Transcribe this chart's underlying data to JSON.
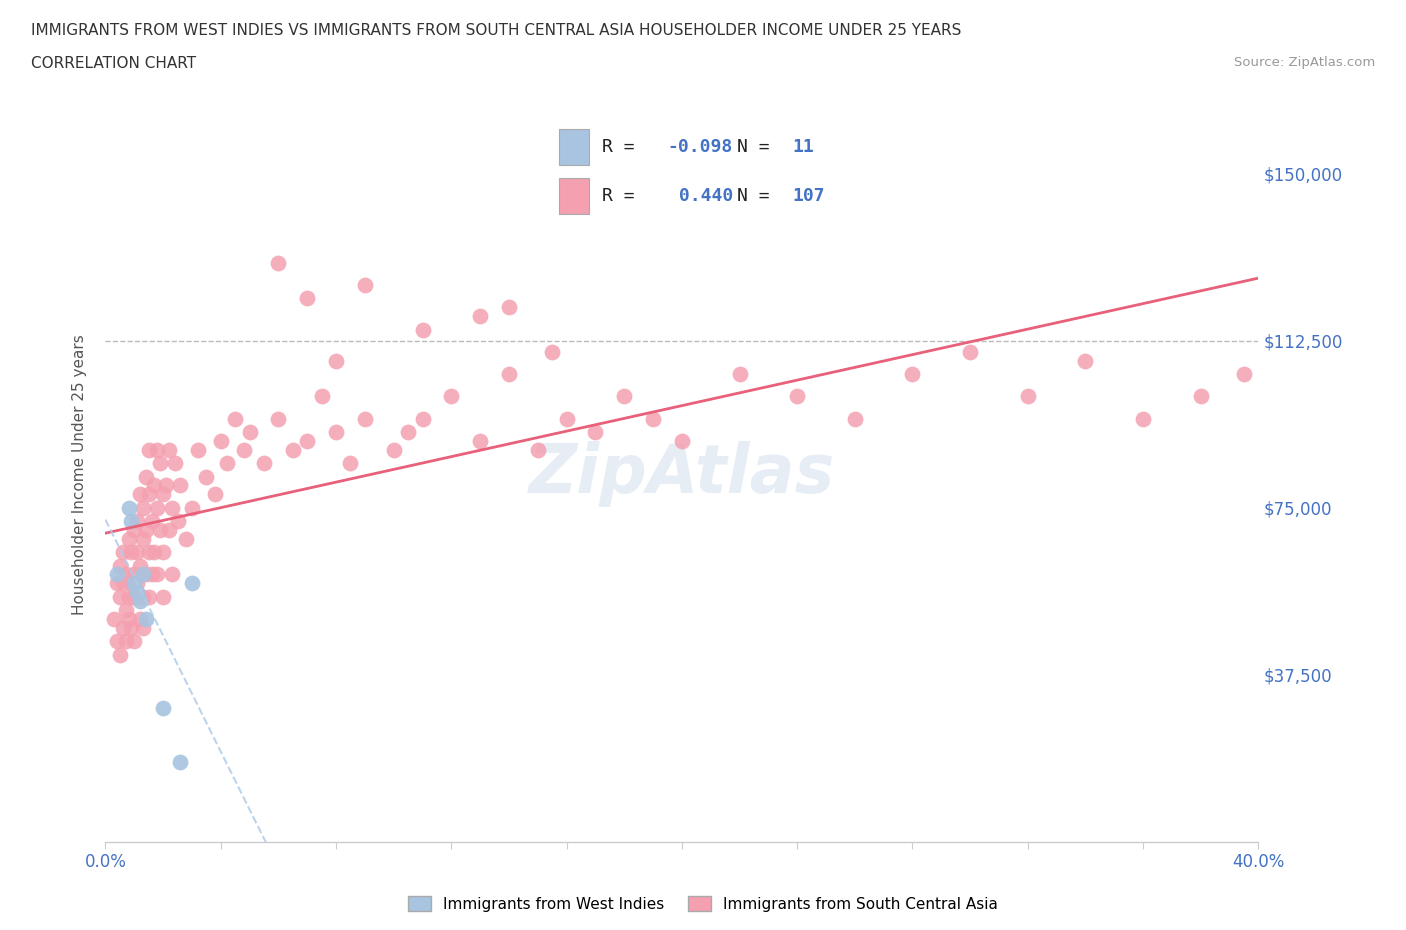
{
  "title_line1": "IMMIGRANTS FROM WEST INDIES VS IMMIGRANTS FROM SOUTH CENTRAL ASIA HOUSEHOLDER INCOME UNDER 25 YEARS",
  "title_line2": "CORRELATION CHART",
  "source_text": "Source: ZipAtlas.com",
  "ylabel": "Householder Income Under 25 years",
  "xlim": [
    0.0,
    0.4
  ],
  "ylim": [
    0,
    165000
  ],
  "yticks": [
    0,
    37500,
    75000,
    112500,
    150000
  ],
  "ytick_labels": [
    "",
    "$37,500",
    "$75,000",
    "$112,500",
    "$150,000"
  ],
  "hline_y": 112500,
  "r_west_indies": -0.098,
  "n_west_indies": 11,
  "r_south_central_asia": 0.44,
  "n_south_central_asia": 107,
  "color_west_indies": "#a8c4e0",
  "color_south_central_asia": "#f4a0b0",
  "line_color_west_indies": "#b0cce8",
  "line_color_south_central_asia": "#e8607a",
  "background_color": "#ffffff",
  "west_indies_x": [
    0.004,
    0.008,
    0.009,
    0.01,
    0.011,
    0.012,
    0.013,
    0.014,
    0.02,
    0.026,
    0.03
  ],
  "west_indies_y": [
    60000,
    75000,
    72000,
    58000,
    56000,
    54000,
    60000,
    50000,
    30000,
    18000,
    58000
  ],
  "south_central_asia_x": [
    0.003,
    0.004,
    0.004,
    0.005,
    0.005,
    0.005,
    0.006,
    0.006,
    0.006,
    0.007,
    0.007,
    0.007,
    0.008,
    0.008,
    0.008,
    0.009,
    0.009,
    0.009,
    0.01,
    0.01,
    0.01,
    0.01,
    0.011,
    0.011,
    0.011,
    0.012,
    0.012,
    0.012,
    0.013,
    0.013,
    0.013,
    0.013,
    0.014,
    0.014,
    0.014,
    0.015,
    0.015,
    0.015,
    0.015,
    0.016,
    0.016,
    0.017,
    0.017,
    0.018,
    0.018,
    0.018,
    0.019,
    0.019,
    0.02,
    0.02,
    0.02,
    0.021,
    0.022,
    0.022,
    0.023,
    0.023,
    0.024,
    0.025,
    0.026,
    0.028,
    0.03,
    0.032,
    0.035,
    0.038,
    0.04,
    0.042,
    0.045,
    0.048,
    0.05,
    0.055,
    0.06,
    0.065,
    0.07,
    0.075,
    0.08,
    0.085,
    0.09,
    0.1,
    0.105,
    0.11,
    0.12,
    0.13,
    0.14,
    0.15,
    0.155,
    0.16,
    0.17,
    0.18,
    0.19,
    0.2,
    0.22,
    0.24,
    0.26,
    0.28,
    0.3,
    0.32,
    0.34,
    0.36,
    0.38,
    0.395,
    0.14,
    0.08,
    0.06,
    0.11,
    0.13,
    0.09,
    0.07
  ],
  "south_central_asia_y": [
    50000,
    45000,
    58000,
    42000,
    55000,
    62000,
    48000,
    58000,
    65000,
    52000,
    60000,
    45000,
    55000,
    68000,
    50000,
    58000,
    65000,
    48000,
    60000,
    70000,
    55000,
    45000,
    65000,
    72000,
    58000,
    62000,
    50000,
    78000,
    68000,
    55000,
    75000,
    48000,
    70000,
    60000,
    82000,
    65000,
    78000,
    55000,
    88000,
    72000,
    60000,
    80000,
    65000,
    75000,
    88000,
    60000,
    70000,
    85000,
    65000,
    78000,
    55000,
    80000,
    70000,
    88000,
    75000,
    60000,
    85000,
    72000,
    80000,
    68000,
    75000,
    88000,
    82000,
    78000,
    90000,
    85000,
    95000,
    88000,
    92000,
    85000,
    95000,
    88000,
    90000,
    100000,
    92000,
    85000,
    95000,
    88000,
    92000,
    95000,
    100000,
    90000,
    105000,
    88000,
    110000,
    95000,
    92000,
    100000,
    95000,
    90000,
    105000,
    100000,
    95000,
    105000,
    110000,
    100000,
    108000,
    95000,
    100000,
    105000,
    120000,
    108000,
    130000,
    115000,
    118000,
    125000,
    122000
  ]
}
